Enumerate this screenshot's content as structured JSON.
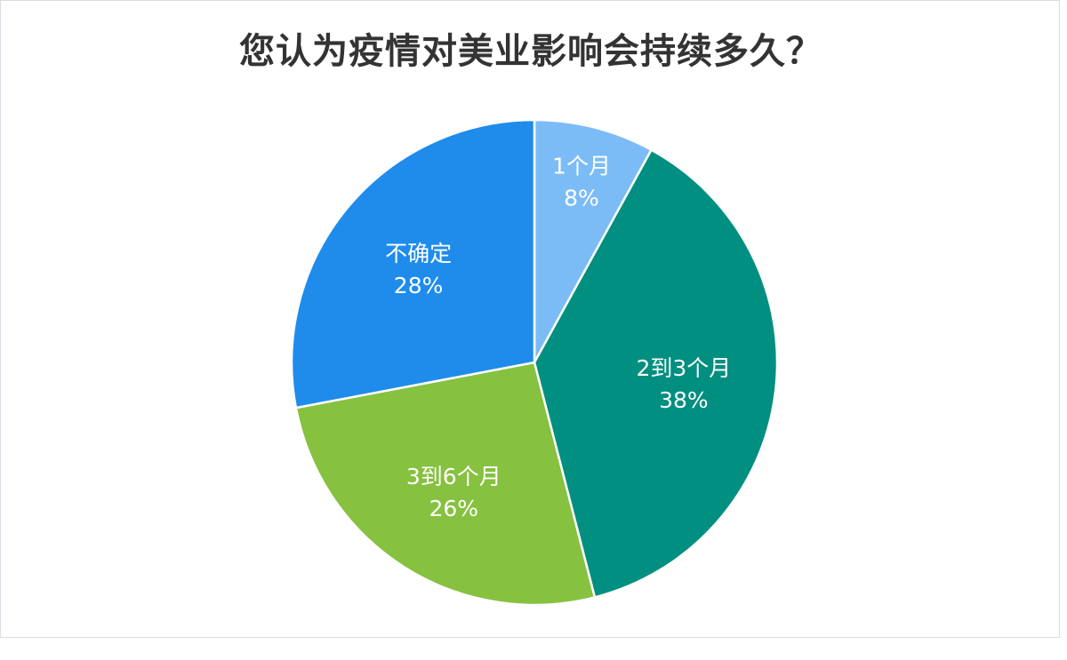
{
  "chart_data": {
    "type": "pie",
    "title": "您认为疫情对美业影响会持续多久？",
    "slices": [
      {
        "name": "1个月",
        "value": 8,
        "label": "8%",
        "color": "#7cbcf6"
      },
      {
        "name": "2到3个月",
        "value": 38,
        "label": "38%",
        "color": "#008f80"
      },
      {
        "name": "3到6个月",
        "value": 26,
        "label": "26%",
        "color": "#86c140"
      },
      {
        "name": "不确定",
        "value": 28,
        "label": "28%",
        "color": "#1f8cec"
      }
    ],
    "legend": "none",
    "start": "12 o'clock",
    "direction": "clockwise"
  }
}
